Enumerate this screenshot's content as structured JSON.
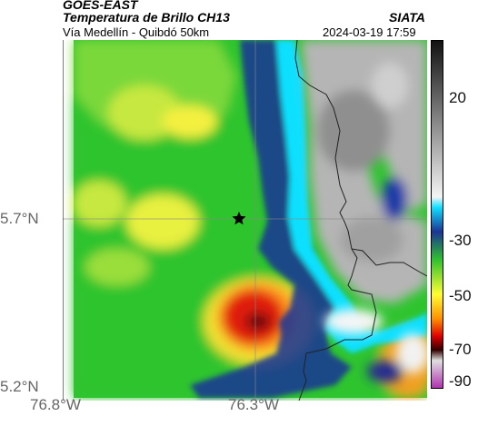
{
  "header": {
    "agency": "GOES-EAST",
    "product": "Temperatura de Brillo CH13",
    "region": "Vía Medellín - Quibdó 50km",
    "source": "SIATA",
    "timestamp": "2024-03-19 17:59"
  },
  "map": {
    "latitude_ticks": [
      "5.7°N",
      "5.2°N"
    ],
    "longitude_ticks": [
      "76.8°W",
      "76.3°W"
    ],
    "marker": "star",
    "basemap_lines": "country and department borders"
  },
  "colorbar": {
    "ticks": [
      "20",
      "-30",
      "-50",
      "-70",
      "-90"
    ],
    "palette": [
      "#111111",
      "#ffffff",
      "#00cfff",
      "#1a2f9a",
      "#2ec12e",
      "#ffff30",
      "#ff9000",
      "#e00000",
      "#330000",
      "#c040c0"
    ]
  }
}
